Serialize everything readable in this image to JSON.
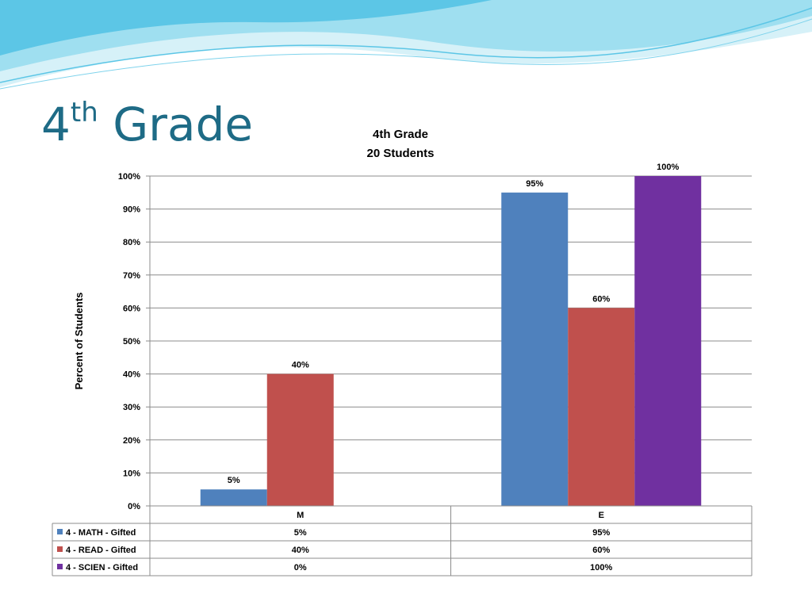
{
  "slide": {
    "title_main": "4",
    "title_sup": "th",
    "title_rest": " Grade"
  },
  "colors": {
    "title": "#1e6b86",
    "wave_light": "#bfe9f5",
    "wave_mid": "#7fd3ec",
    "wave_dark": "#3fb8e0"
  },
  "chart_data": {
    "type": "bar",
    "title_line1": "4th Grade",
    "title_line2": "20 Students",
    "xlabel": "",
    "ylabel": "Percent of Students",
    "ylim": [
      0,
      100
    ],
    "yticks": [
      "0%",
      "10%",
      "20%",
      "30%",
      "40%",
      "50%",
      "60%",
      "70%",
      "80%",
      "90%",
      "100%"
    ],
    "categories": [
      "M",
      "E"
    ],
    "grid": true,
    "legend": "data-table",
    "series": [
      {
        "name": "4 - MATH - Gifted",
        "color": "#4f81bd",
        "values": [
          5,
          95
        ],
        "labels": [
          "5%",
          "95%"
        ]
      },
      {
        "name": "4 - READ - Gifted",
        "color": "#c0504d",
        "values": [
          40,
          60
        ],
        "labels": [
          "40%",
          "60%"
        ]
      },
      {
        "name": "4 - SCIEN - Gifted",
        "color": "#7030a0",
        "values": [
          0,
          100
        ],
        "labels": [
          "0%",
          "100%"
        ]
      }
    ]
  }
}
